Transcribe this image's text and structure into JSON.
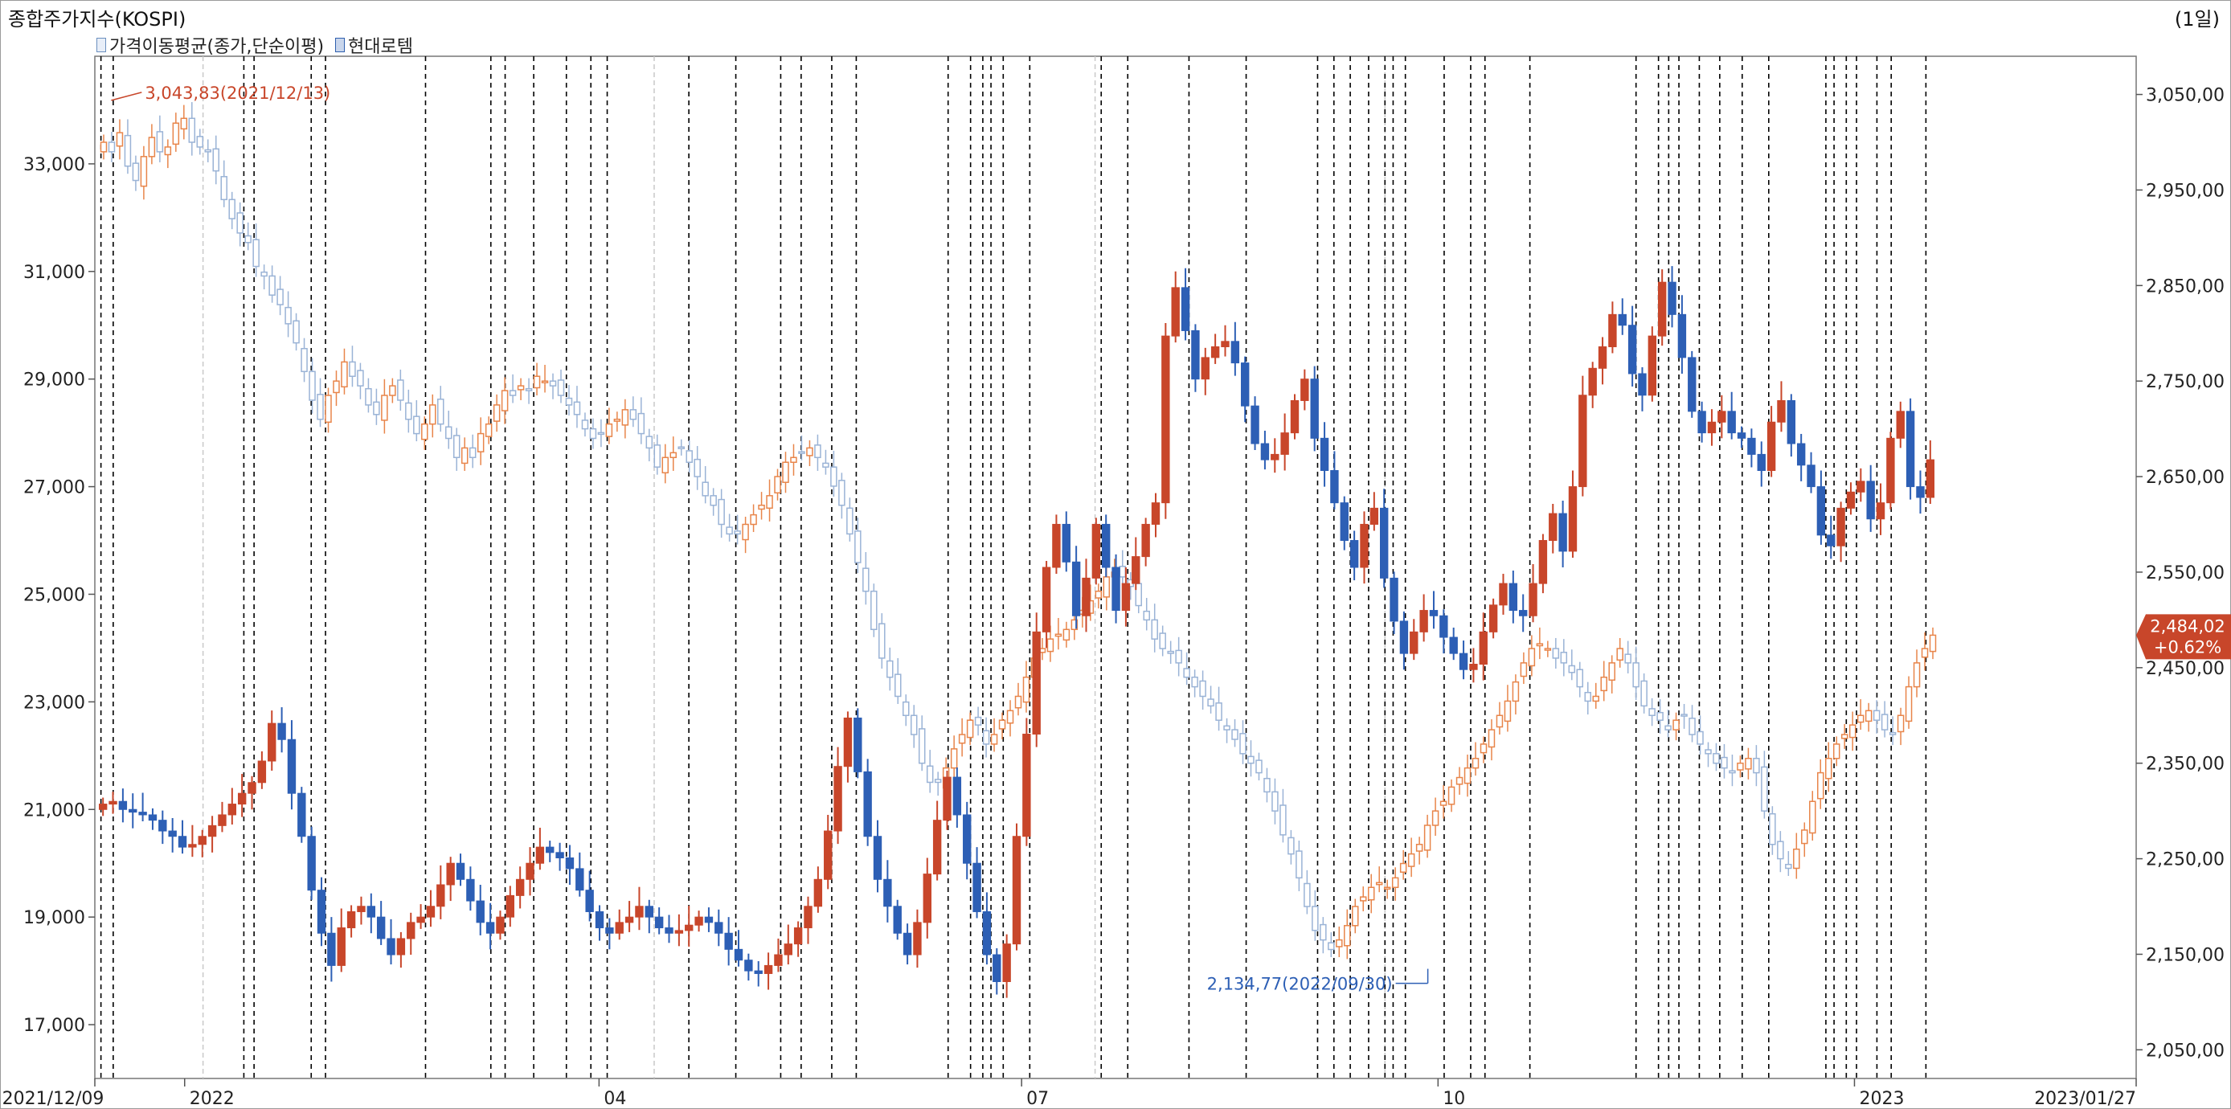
{
  "header": {
    "title": "종합주가지수(KOSPI)",
    "period": "(1일)",
    "legend": [
      {
        "label": "가격이동평균(종가,단순이평)",
        "icon": "series-swatch-icon"
      },
      {
        "label": "현대로템",
        "icon": "series-swatch-icon"
      }
    ]
  },
  "colors": {
    "up": "#c8462a",
    "down": "#2d5fb5",
    "kospi_up": "#e8854a",
    "kospi_down": "#9ab3d6",
    "guide": "#000000",
    "high_note": "#c8462a",
    "low_note": "#2d5fb5",
    "current_badge": "#c8462a"
  },
  "chart_data": {
    "type": "candlestick-overlay",
    "x_range": [
      "2021/12/09",
      "2023/01/27"
    ],
    "x_ticks": [
      "2021/12/09",
      "2022",
      "04",
      "07",
      "10",
      "2023",
      "2023/01/27"
    ],
    "left_axis": {
      "series": "현대로템",
      "range": [
        16000,
        35000
      ],
      "ticks": [
        "33,000",
        "31,000",
        "29,000",
        "27,000",
        "25,000",
        "23,000",
        "21,000",
        "19,000",
        "17,000"
      ]
    },
    "right_axis": {
      "series": "종합주가지수(KOSPI)",
      "range": [
        2020,
        3090
      ],
      "ticks": [
        "3,050,00",
        "2,950,00",
        "2,850,00",
        "2,750,00",
        "2,650,00",
        "2,550,00",
        "2,450,00",
        "2,350,00",
        "2,250,00",
        "2,150,00",
        "2,050,00"
      ]
    },
    "annotations": {
      "high": "3,043,83(2021/12/13)",
      "low": "2,134,77(2022/09/30)",
      "last_value": "2,484,02",
      "last_change": "+0.62%"
    },
    "kospi_close": [
      3000,
      2990,
      3010,
      2975,
      2960,
      2985,
      3005,
      2990,
      2995,
      3020,
      3025,
      3000,
      2995,
      2990,
      2970,
      2940,
      2920,
      2905,
      2895,
      2870,
      2860,
      2840,
      2830,
      2810,
      2790,
      2760,
      2730,
      2710,
      2735,
      2750,
      2770,
      2755,
      2745,
      2725,
      2715,
      2735,
      2745,
      2730,
      2710,
      2695,
      2705,
      2725,
      2705,
      2690,
      2670,
      2680,
      2670,
      2695,
      2705,
      2725,
      2740,
      2735,
      2745,
      2740,
      2755,
      2750,
      2745,
      2735,
      2725,
      2715,
      2700,
      2690,
      2695,
      2705,
      2710,
      2720,
      2710,
      2695,
      2680,
      2660,
      2670,
      2675,
      2680,
      2665,
      2650,
      2630,
      2620,
      2600,
      2590,
      2590,
      2600,
      2610,
      2620,
      2630,
      2650,
      2665,
      2670,
      2675,
      2680,
      2670,
      2660,
      2640,
      2620,
      2590,
      2560,
      2530,
      2490,
      2460,
      2440,
      2420,
      2400,
      2380,
      2350,
      2330,
      2330,
      2345,
      2365,
      2380,
      2395,
      2390,
      2370,
      2380,
      2395,
      2405,
      2420,
      2440,
      2460,
      2470,
      2480,
      2485,
      2490,
      2500,
      2510,
      2520,
      2530,
      2545,
      2550,
      2545,
      2535,
      2515,
      2500,
      2480,
      2470,
      2465,
      2455,
      2440,
      2430,
      2420,
      2410,
      2395,
      2385,
      2375,
      2360,
      2350,
      2340,
      2320,
      2300,
      2275,
      2255,
      2230,
      2200,
      2175,
      2165,
      2155,
      2165,
      2180,
      2200,
      2210,
      2220,
      2225,
      2220,
      2230,
      2245,
      2255,
      2265,
      2285,
      2300,
      2310,
      2325,
      2335,
      2345,
      2355,
      2370,
      2385,
      2400,
      2415,
      2435,
      2455,
      2470,
      2475,
      2470,
      2460,
      2455,
      2445,
      2430,
      2415,
      2420,
      2440,
      2455,
      2470,
      2455,
      2430,
      2410,
      2400,
      2395,
      2385,
      2395,
      2400,
      2380,
      2370,
      2360,
      2350,
      2345,
      2340,
      2350,
      2355,
      2340,
      2300,
      2265,
      2250,
      2240,
      2260,
      2280,
      2310,
      2340,
      2355,
      2370,
      2380,
      2390,
      2400,
      2405,
      2395,
      2385,
      2380,
      2400,
      2430,
      2455,
      2470,
      2484
    ],
    "rotem_close": [
      21100,
      21150,
      21000,
      20950,
      20900,
      20800,
      20600,
      20500,
      20300,
      20350,
      20500,
      20700,
      20900,
      21100,
      21300,
      21500,
      21900,
      22600,
      22300,
      21300,
      20500,
      19500,
      18700,
      18100,
      18800,
      19100,
      19200,
      19000,
      18600,
      18300,
      18600,
      18900,
      19000,
      19200,
      19600,
      20000,
      19700,
      19300,
      18900,
      18700,
      19000,
      19400,
      19700,
      20000,
      20300,
      20200,
      20100,
      19900,
      19500,
      19100,
      18800,
      18700,
      18900,
      19000,
      19200,
      19000,
      18800,
      18700,
      18750,
      18850,
      19000,
      18900,
      18700,
      18400,
      18200,
      18000,
      17950,
      18100,
      18300,
      18500,
      18800,
      19200,
      19700,
      20600,
      21800,
      22700,
      21700,
      20500,
      19700,
      19200,
      18700,
      18300,
      18900,
      19800,
      20800,
      21600,
      20900,
      20000,
      19100,
      18300,
      17800,
      18500,
      20500,
      22400,
      24300,
      25500,
      26300,
      25600,
      24600,
      25300,
      26300,
      25500,
      24700,
      25200,
      25700,
      26300,
      26700,
      29800,
      30700,
      29900,
      29000,
      29400,
      29600,
      29700,
      29300,
      28500,
      27800,
      27500,
      27600,
      28000,
      28600,
      29000,
      27900,
      27300,
      26700,
      26000,
      25500,
      26300,
      26600,
      25300,
      24500,
      23900,
      24300,
      24700,
      24600,
      24200,
      23900,
      23600,
      23700,
      24300,
      24800,
      25200,
      24700,
      24600,
      25200,
      26000,
      26500,
      25800,
      27000,
      28700,
      29200,
      29600,
      30200,
      30000,
      29100,
      28700,
      29800,
      30800,
      30200,
      29400,
      28400,
      28000,
      28200,
      28400,
      28000,
      27900,
      27600,
      27300,
      28200,
      28600,
      27800,
      27400,
      27000,
      26100,
      25900,
      26600,
      26900,
      27100,
      26400,
      26700,
      27900,
      28400,
      27000,
      26800,
      27500
    ],
    "event_lines_pct": [
      0.3,
      0.9,
      7.3,
      7.8,
      10.6,
      11.3,
      16.2,
      19.4,
      20.1,
      21.5,
      23.1,
      24.3,
      25.1,
      29.1,
      31.4,
      33.6,
      34.6,
      36.1,
      37.3,
      41.8,
      42.9,
      43.5,
      43.9,
      44.5,
      45.8,
      49.3,
      50.6,
      53.6,
      56.4,
      59.9,
      60.7,
      61.5,
      62.4,
      63.2,
      63.6,
      64.2,
      66.1,
      67.4,
      68.1,
      70.3,
      75.5,
      76.6,
      77.1,
      77.6,
      78.6,
      79.6,
      80.7,
      82.0,
      84.8,
      85.2,
      85.8,
      86.3,
      87.3,
      88.0,
      89.7
    ],
    "event_lines_light_pct": [
      5.3,
      27.4,
      49.0,
      63.2
    ]
  }
}
